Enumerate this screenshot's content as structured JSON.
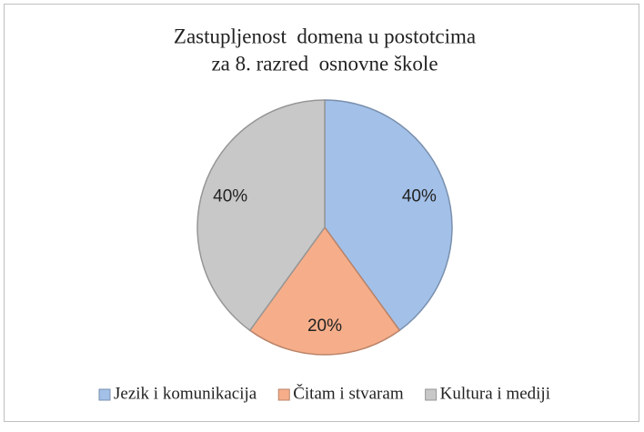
{
  "chart_data": {
    "type": "pie",
    "title": [
      "Zastupljenost  domena u postotcima",
      "za 8. razred  osnovne škole"
    ],
    "categories": [
      "Jezik i komunikacija",
      "Čitam i stvaram",
      "Kultura i mediji"
    ],
    "values": [
      40,
      20,
      40
    ],
    "value_labels": [
      "40%",
      "20%",
      "40%"
    ],
    "colors": [
      "#a3c0e8",
      "#f6ae8a",
      "#c8c8c8"
    ],
    "legend": "bottom"
  }
}
